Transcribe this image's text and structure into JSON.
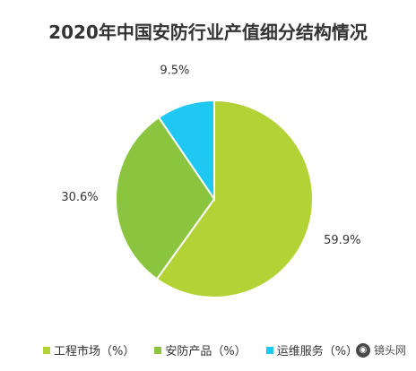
{
  "chart_data": {
    "type": "pie",
    "title": "2020年中国安防行业产值细分结构情况",
    "categories": [
      "工程市场（%）",
      "安防产品（%）",
      "运维服务（%）"
    ],
    "values": [
      59.9,
      30.6,
      9.5
    ],
    "value_labels": [
      "59.9%",
      "30.6%",
      "9.5%"
    ],
    "colors": [
      "#b2d235",
      "#8bc53f",
      "#1ec8f2"
    ],
    "legend_position": "bottom"
  },
  "watermark": {
    "text": "镜头网",
    "icon": "camera-lens-icon"
  }
}
